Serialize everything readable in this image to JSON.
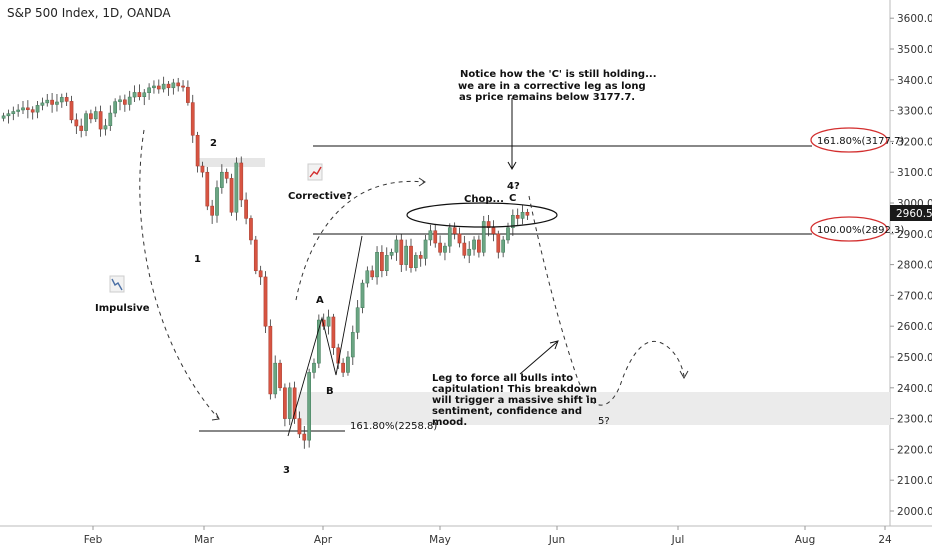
{
  "header": {
    "title": "S&P 500 Index, 1D, OANDA"
  },
  "price_label": {
    "value": "2960.5",
    "color": "#1a1a1a"
  },
  "chart_data": {
    "type": "candlestick",
    "title": "S&P 500 Index, 1D, OANDA",
    "y_ticks": [
      "2000.0",
      "2100.0",
      "2200.0",
      "2300.0",
      "2400.0",
      "2500.0",
      "2600.0",
      "2700.0",
      "2800.0",
      "2900.0",
      "3000.0",
      "3100.0",
      "3200.0",
      "3300.0",
      "3400.0",
      "3500.0",
      "3600.0"
    ],
    "ylim": [
      1970,
      3640
    ],
    "x_ticks": [
      "Feb",
      "Mar",
      "Apr",
      "May",
      "Jun",
      "Jul",
      "Aug",
      "24"
    ],
    "colors": {
      "up": "#6ba583",
      "down": "#d75442",
      "wick": "#333333"
    },
    "candles_close_approx": [
      3283,
      3290,
      3297,
      3302,
      3309,
      3303,
      3295,
      3317,
      3325,
      3334,
      3320,
      3328,
      3343,
      3330,
      3270,
      3250,
      3235,
      3290,
      3273,
      3297,
      3240,
      3251,
      3292,
      3329,
      3335,
      3320,
      3344,
      3359,
      3345,
      3358,
      3374,
      3380,
      3370,
      3386,
      3374,
      3390,
      3380,
      3376,
      3326,
      3220,
      3120,
      3100,
      2990,
      2960,
      3050,
      3100,
      3080,
      2970,
      3130,
      3010,
      2950,
      2880,
      2780,
      2760,
      2600,
      2380,
      2480,
      2400,
      2300,
      2400,
      2300,
      2250,
      2230,
      2450,
      2480,
      2620,
      2600,
      2630,
      2530,
      2480,
      2450,
      2500,
      2580,
      2660,
      2740,
      2780,
      2760,
      2840,
      2780,
      2830,
      2840,
      2880,
      2800,
      2860,
      2790,
      2830,
      2820,
      2880,
      2910,
      2870,
      2840,
      2860,
      2920,
      2900,
      2870,
      2830,
      2850,
      2880,
      2840,
      2940,
      2920,
      2900,
      2840,
      2880,
      2920,
      2960,
      2950,
      2970,
      2960
    ],
    "levels": [
      {
        "label": "161.80%(3177.7)",
        "value": 3177.7
      },
      {
        "label": "100.00%(2892.3)",
        "value": 2892.3
      },
      {
        "label": "161.80%(2258.8)",
        "value": 2258.8
      }
    ],
    "wave_labels": [
      "1",
      "2",
      "3",
      "A",
      "B",
      "C",
      "4?",
      "5?"
    ],
    "annotations": [
      "Notice how the 'C' is still holding...",
      "we are in a corrective leg as long",
      "as price remains below 3177.7.",
      "Chop...",
      "Corrective?",
      "Impulsive",
      "Leg to force all bulls into",
      "capitulation! This breakdown",
      "will trigger a massive shift in",
      "sentiment, confidence and",
      "mood."
    ]
  }
}
